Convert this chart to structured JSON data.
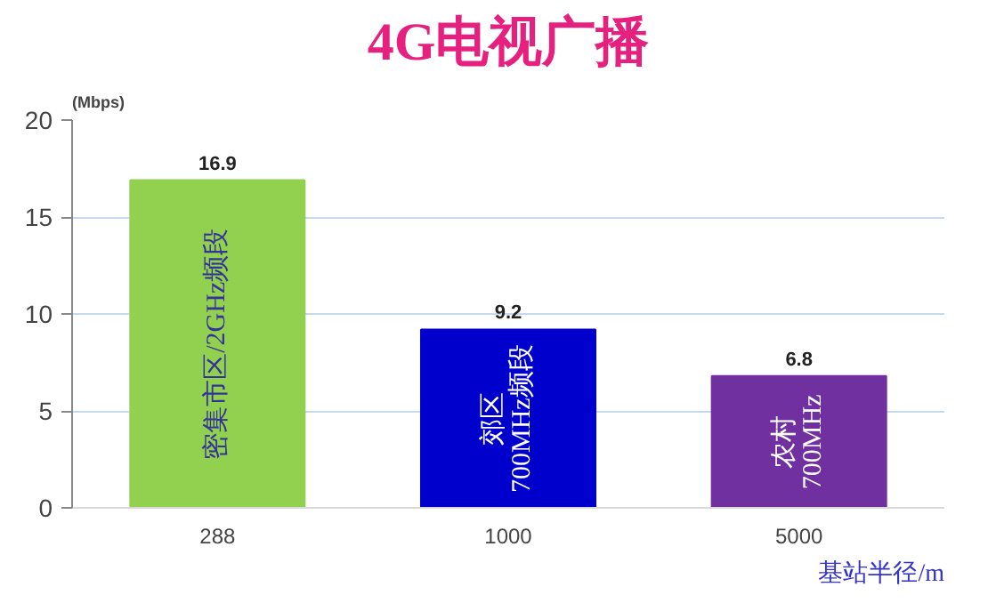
{
  "chart_data": {
    "type": "bar",
    "title": "4G电视广播",
    "ylabel": "(Mbps)",
    "xlabel": "基站半径/m",
    "categories": [
      "288",
      "1000",
      "5000"
    ],
    "values": [
      16.9,
      9.2,
      6.8
    ],
    "colors": [
      "#92d050",
      "#0000cc",
      "#7030a0"
    ],
    "ylim": [
      0,
      20
    ],
    "yticks": [
      0,
      5,
      10,
      15,
      20
    ],
    "grid": "y",
    "data_labels": true,
    "annotations": [
      "密集市区/2GHz频段",
      "郊区\n700MHz频段",
      "农村\n700MHz"
    ]
  }
}
